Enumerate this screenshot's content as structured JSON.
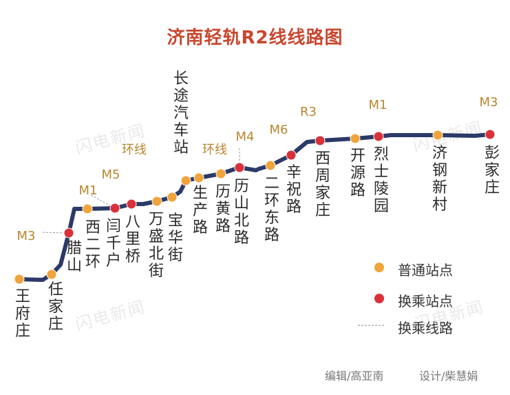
{
  "title": "济南轻轨R2线线路图",
  "watermark": "闪电新闻",
  "line_color": "#2b3a67",
  "normal_color": "#f0a43c",
  "transfer_color": "#d9313a",
  "stations": [
    {
      "name": "王府庄",
      "type": "normal"
    },
    {
      "name": "任家庄",
      "type": "normal"
    },
    {
      "name": "腊山",
      "type": "transfer",
      "transfers": "M3"
    },
    {
      "name": "西二环",
      "type": "normal"
    },
    {
      "name": "闫千户",
      "type": "transfer",
      "transfers": "M1"
    },
    {
      "name": "八里桥",
      "type": "transfer",
      "transfers": "M5"
    },
    {
      "name": "万盛北街",
      "type": "normal"
    },
    {
      "name": "宝华街",
      "type": "normal"
    },
    {
      "name": "长途汽车站",
      "type": "normal"
    },
    {
      "name": "生产路",
      "type": "normal"
    },
    {
      "name": "历黄路",
      "type": "normal"
    },
    {
      "name": "历山北路",
      "type": "transfer",
      "transfers": "M4"
    },
    {
      "name": "二环东路",
      "type": "normal"
    },
    {
      "name": "辛祝路",
      "type": "transfer",
      "transfers": "M6"
    },
    {
      "name": "西周家庄",
      "type": "transfer",
      "transfers": "R3"
    },
    {
      "name": "开源路",
      "type": "normal"
    },
    {
      "name": "烈士陵园",
      "type": "transfer",
      "transfers": "M1"
    },
    {
      "name": "济钢新村",
      "type": "normal"
    },
    {
      "name": "彭家庄",
      "type": "transfer",
      "transfers": "M3"
    }
  ],
  "extra_transfer_labels": [
    "环线",
    "环线"
  ],
  "legend": {
    "normal": "普通站点",
    "transfer": "换乘站点",
    "transfer_line": "换乘线路"
  },
  "credits": {
    "editor": "编辑/高亚南",
    "designer": "设计/柴慧娟"
  }
}
